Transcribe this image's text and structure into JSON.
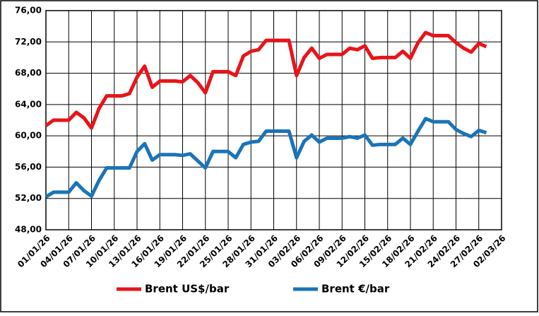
{
  "chart_data": {
    "type": "line",
    "categories": [
      "01/01/26",
      null,
      null,
      "04/01/26",
      null,
      null,
      "07/01/26",
      null,
      null,
      "10/01/26",
      null,
      null,
      "13/01/26",
      null,
      null,
      "16/01/26",
      null,
      null,
      "19/01/26",
      null,
      null,
      "22/01/26",
      null,
      null,
      "25/01/26",
      null,
      null,
      "28/01/26",
      null,
      null,
      "31/01/26",
      null,
      null,
      "03/02/26",
      null,
      null,
      "06/02/26",
      null,
      null,
      "09/02/26",
      null,
      null,
      "12/02/26",
      null,
      null,
      "15/02/26",
      null,
      null,
      "18/02/26",
      null,
      null,
      "21/02/26",
      null,
      null,
      "24/02/26",
      null,
      null,
      "27/02/26",
      null,
      null,
      "02/03/26"
    ],
    "series": [
      {
        "name": "Brent US$/bar",
        "color": "#e8141a",
        "values": [
          61.3,
          62,
          62,
          62,
          63,
          62.3,
          61,
          63.5,
          65.1,
          65.1,
          65.1,
          65.4,
          67.5,
          68.9,
          66.2,
          67,
          67,
          67,
          66.9,
          67.7,
          66.8,
          65.5,
          68.2,
          68.2,
          68.2,
          67.7,
          70.2,
          70.8,
          71,
          72.2,
          72.2,
          72.2,
          72.2,
          67.7,
          70,
          71.2,
          69.9,
          70.4,
          70.4,
          70.4,
          71.2,
          71,
          71.5,
          69.9,
          70,
          70,
          70,
          70.8,
          69.9,
          71.9,
          73.2,
          72.8,
          72.8,
          72.8,
          71.9,
          71.2,
          70.7,
          71.8,
          71.4,
          null,
          null
        ]
      },
      {
        "name": "Brent €/bar",
        "color": "#1a74b8",
        "values": [
          52.2,
          52.8,
          52.8,
          52.8,
          54,
          53,
          52.3,
          54.3,
          55.9,
          55.9,
          55.9,
          55.9,
          58,
          59,
          56.9,
          57.6,
          57.6,
          57.6,
          57.5,
          57.7,
          56.8,
          55.9,
          58,
          58,
          58,
          57.2,
          58.9,
          59.2,
          59.3,
          60.6,
          60.6,
          60.6,
          60.6,
          57.2,
          59.3,
          60.1,
          59.2,
          59.7,
          59.7,
          59.7,
          59.9,
          59.7,
          60.1,
          58.8,
          58.9,
          58.9,
          58.9,
          59.7,
          58.9,
          60.6,
          62.2,
          61.8,
          61.8,
          61.8,
          60.8,
          60.3,
          59.9,
          60.7,
          60.4,
          null,
          null
        ]
      }
    ],
    "ylim": [
      48,
      76
    ],
    "yticks": [
      {
        "value": 48,
        "label": "48,00"
      },
      {
        "value": 52,
        "label": "52,00"
      },
      {
        "value": 56,
        "label": "56,00"
      },
      {
        "value": 60,
        "label": "60,00"
      },
      {
        "value": 64,
        "label": "64,00"
      },
      {
        "value": 68,
        "label": "68,00"
      },
      {
        "value": 72,
        "label": "72,00"
      },
      {
        "value": 76,
        "label": "76,00"
      }
    ],
    "grid": true
  }
}
